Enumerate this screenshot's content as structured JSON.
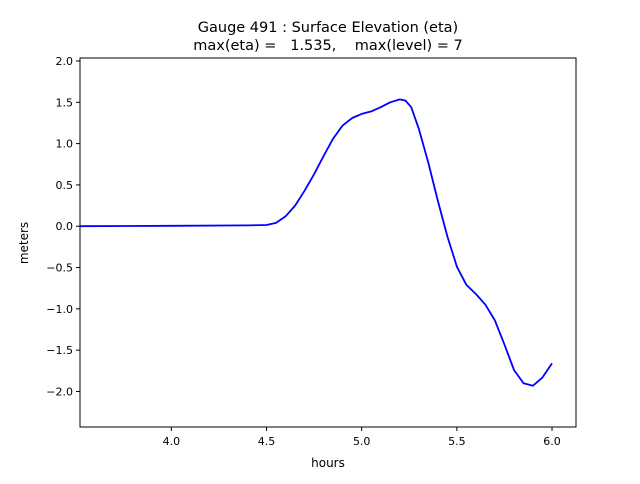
{
  "chart_data": {
    "type": "line",
    "title": "Gauge 491 : Surface Elevation (eta)",
    "subtitle": "max(eta) =   1.535,    max(level) = 7",
    "xlabel": "hours",
    "ylabel": "meters",
    "xlim": [
      3.52,
      6.126
    ],
    "ylim": [
      -2.43,
      2.036
    ],
    "xticks": [
      4.0,
      4.5,
      5.0,
      5.5,
      6.0
    ],
    "xtick_labels": [
      "4.0",
      "4.5",
      "5.0",
      "5.5",
      "6.0"
    ],
    "yticks": [
      2.0,
      1.5,
      1.0,
      0.5,
      0.0,
      -0.5,
      -1.0,
      -1.5,
      -2.0
    ],
    "ytick_labels": [
      "2.0",
      "1.5",
      "1.0",
      "0.5",
      "0.0",
      "−0.5",
      "−1.0",
      "−1.5",
      "−2.0"
    ],
    "grid": false,
    "series": [
      {
        "color": "#0000ff",
        "x": [
          3.52,
          4.0,
          4.4,
          4.5,
          4.55,
          4.6,
          4.65,
          4.7,
          4.75,
          4.8,
          4.85,
          4.9,
          4.95,
          5.0,
          5.05,
          5.1,
          5.15,
          5.2,
          5.23,
          5.26,
          5.3,
          5.35,
          5.4,
          5.45,
          5.5,
          5.55,
          5.6,
          5.65,
          5.7,
          5.75,
          5.8,
          5.85,
          5.9,
          5.95,
          6.0
        ],
        "y": [
          0.0,
          0.005,
          0.01,
          0.015,
          0.04,
          0.12,
          0.25,
          0.43,
          0.63,
          0.85,
          1.06,
          1.22,
          1.31,
          1.36,
          1.39,
          1.44,
          1.5,
          1.535,
          1.52,
          1.44,
          1.18,
          0.77,
          0.31,
          -0.12,
          -0.49,
          -0.71,
          -0.82,
          -0.95,
          -1.14,
          -1.43,
          -1.74,
          -1.9,
          -1.93,
          -1.83,
          -1.66
        ]
      }
    ]
  }
}
